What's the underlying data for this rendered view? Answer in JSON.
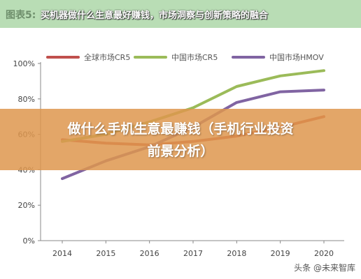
{
  "header": {
    "fig_label": "图表5:",
    "overlay_title": "买机器做什么生意最好赚钱，市场洞察与创新策略的融合"
  },
  "banner": {
    "line1": "做什么手机生意最赚钱（手机行业投资",
    "line2": "前景分析）"
  },
  "watermark": "头条 @未来智库",
  "colors": {
    "cr5_global": "#c0504d",
    "cr5_china": "#9bbb59",
    "hmov_china": "#8064a2",
    "header_bg": "#b9ddb5",
    "banner_bg": "#de964e"
  },
  "chart_data": {
    "type": "line",
    "title": "",
    "xlabel": "",
    "ylabel": "",
    "categories": [
      "2014",
      "2015",
      "2016",
      "2017",
      "2018",
      "2019",
      "2020"
    ],
    "ylim": [
      0,
      100
    ],
    "yticks": [
      "0%",
      "20%",
      "40%",
      "60%",
      "80%",
      "100%"
    ],
    "grid": false,
    "legend_position": "top",
    "series": [
      {
        "name": "全球市场CR5",
        "color": "#c0504d",
        "values": [
          57,
          55,
          54,
          56,
          59,
          64,
          70
        ]
      },
      {
        "name": "中国市场CR5",
        "color": "#9bbb59",
        "values": [
          56,
          60,
          67,
          75,
          87,
          93,
          96
        ]
      },
      {
        "name": "中国市场HMOV",
        "color": "#8064a2",
        "values": [
          35,
          45,
          53,
          64,
          78,
          84,
          85
        ]
      }
    ]
  }
}
